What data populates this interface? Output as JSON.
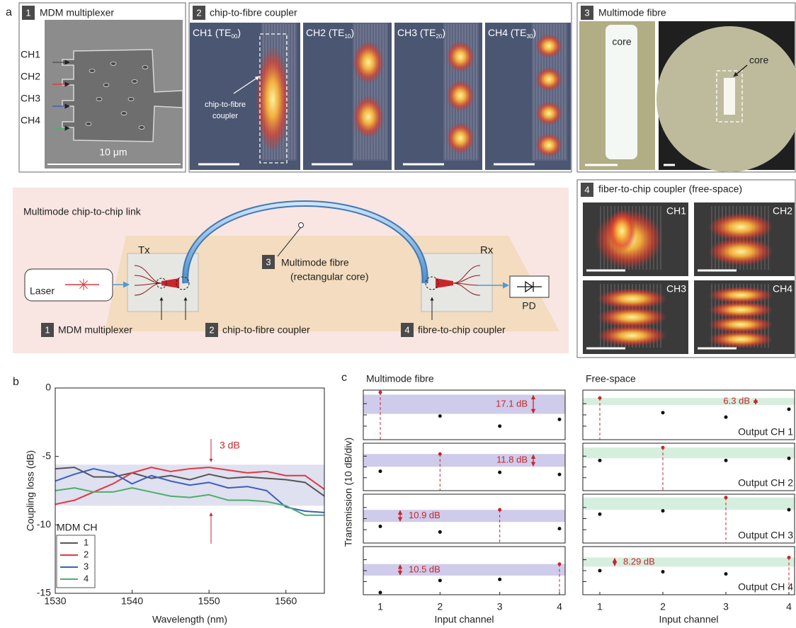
{
  "panel_a": {
    "label": "a",
    "mux": {
      "number": "1",
      "title": "MDM multiplexer",
      "channels": [
        "CH1",
        "CH2",
        "CH3",
        "CH4"
      ],
      "scale": "10 μm"
    },
    "coupler": {
      "number": "2",
      "title": "chip-to-fibre coupler",
      "images": [
        [
          "CH1 (TE",
          "00",
          ")"
        ],
        [
          "CH2 (TE",
          "10",
          ")"
        ],
        [
          "CH3 (TE",
          "20",
          ")"
        ],
        [
          "CH4 (TE",
          "30",
          ")"
        ]
      ],
      "callout": [
        "chip-to-fibre",
        "coupler"
      ]
    },
    "fibre": {
      "number": "3",
      "title": "Multimode fibre",
      "core_labels": [
        "core",
        "core"
      ]
    },
    "free_space": {
      "number": "4",
      "title": "fiber-to-chip coupler (free-space)",
      "channels": [
        "CH1",
        "CH2",
        "CH3",
        "CH4"
      ]
    },
    "link": {
      "title": "Multimode chip-to-chip link",
      "tx": "Tx",
      "rx": "Rx",
      "laser": "Laser",
      "pd": "PD",
      "fibre": {
        "number": "3",
        "lines": [
          "Multimode fibre",
          "(rectangular core)"
        ]
      },
      "callouts": [
        {
          "number": "1",
          "text": "MDM multiplexer"
        },
        {
          "number": "2",
          "text": "chip-to-fibre coupler"
        },
        {
          "number": "4",
          "text": "fibre-to-chip coupler"
        }
      ]
    }
  },
  "chart_data": [
    {
      "type": "line",
      "label": "b",
      "xlabel": "Wavelength (nm)",
      "ylabel": "Coupling loss (dB)",
      "x": [
        1530,
        1532.5,
        1535,
        1537.5,
        1540,
        1542.5,
        1545,
        1547.5,
        1550,
        1552.5,
        1555,
        1557.5,
        1560,
        1562.5,
        1565
      ],
      "series": [
        {
          "name": "1",
          "color": "#555555",
          "values": [
            -5.9,
            -5.8,
            -6.5,
            -6.5,
            -6.2,
            -6.6,
            -6.4,
            -6.7,
            -6.3,
            -6.6,
            -6.5,
            -6.6,
            -6.7,
            -6.9,
            -7.9
          ]
        },
        {
          "name": "2",
          "color": "#e0393e",
          "values": [
            -8.5,
            -8.2,
            -7.6,
            -7.0,
            -6.2,
            -5.8,
            -6.1,
            -5.9,
            -5.8,
            -6.0,
            -6.2,
            -6.1,
            -6.4,
            -6.4,
            -7.4
          ]
        },
        {
          "name": "3",
          "color": "#3b5fc0",
          "values": [
            -6.8,
            -6.3,
            -5.9,
            -6.2,
            -7.0,
            -6.4,
            -6.8,
            -7.1,
            -6.9,
            -7.3,
            -7.2,
            -7.5,
            -8.7,
            -9.0,
            -9.1
          ]
        },
        {
          "name": "4",
          "color": "#4caf6a",
          "values": [
            -7.5,
            -7.3,
            -7.6,
            -7.6,
            -7.3,
            -7.6,
            -7.9,
            -8.0,
            -7.8,
            -8.2,
            -8.2,
            -8.3,
            -8.6,
            -9.3,
            -9.3
          ]
        }
      ],
      "xlim": [
        1530,
        1565
      ],
      "ylim": [
        -15,
        0
      ],
      "xticks": [
        1530,
        1540,
        1550,
        1560
      ],
      "yticks": [
        0,
        -5,
        -10,
        -15
      ],
      "legend_title": "MDM CH",
      "band": [
        -8.6,
        -5.6
      ],
      "band_color": "#dfe0f0",
      "annotation": "3 dB"
    },
    {
      "type": "dot_grid",
      "label": "c",
      "ylabel": "Transmission (10 dB/div)",
      "xlabel": "Input channel",
      "categories": [
        1,
        2,
        3,
        4
      ],
      "ylim": [
        -42,
        2
      ],
      "yticks": [
        -10,
        -20,
        -30
      ],
      "outputs": [
        "Output CH 1",
        "Output CH 2",
        "Output CH 3",
        "Output CH 4"
      ],
      "columns": [
        {
          "title": "Multimode fibre",
          "band_color": "#cfcbea",
          "rows": [
            {
              "values": [
                0,
                -21,
                -30,
                -24
              ],
              "band": [
                -19.1,
                -2
              ],
              "band_label": "17.1 dB"
            },
            {
              "values": [
                -24,
                -8,
                -25,
                -27
              ],
              "band": [
                -19.8,
                -8
              ],
              "band_label": "11.8 dB"
            },
            {
              "values": [
                -27,
                -32,
                -12,
                -29
              ],
              "band": [
                -23,
                -12.1
              ],
              "band_label": "10.9 dB"
            },
            {
              "values": [
                -40,
                -29,
                -28,
                -14
              ],
              "band": [
                -24.5,
                -14
              ],
              "band_label": "10.5 dB"
            }
          ]
        },
        {
          "title": "Free-space",
          "band_color": "#d6eedd",
          "rows": [
            {
              "values": [
                -5,
                -18,
                -22,
                -15
              ],
              "band": [
                -11.3,
                -5
              ],
              "band_label": "6.3 dB"
            },
            {
              "values": [
                -14,
                -2,
                -14,
                -12
              ],
              "band": [
                -12,
                -2
              ]
            },
            {
              "values": [
                -16,
                -13,
                -1,
                -12
              ],
              "band": [
                -12,
                -1
              ]
            },
            {
              "values": [
                -20,
                -21,
                -23,
                -8
              ],
              "band": [
                -16.3,
                -8
              ],
              "band_label": "8.29 dB"
            }
          ]
        }
      ]
    }
  ]
}
